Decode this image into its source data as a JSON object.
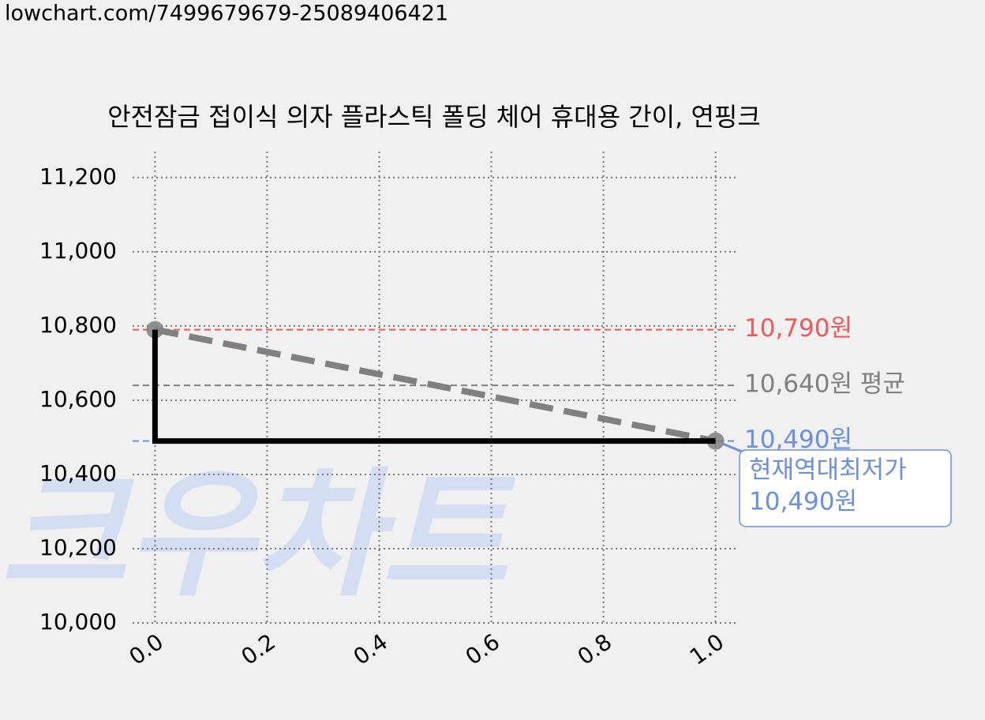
{
  "url": "lowchart.com/7499679679-25089406421",
  "watermark": "크우차트",
  "chart_data": {
    "type": "line",
    "title": "안전잠금 접이식 의자 플라스틱 폴딩 체어 휴대용 간이, 연핑크",
    "series": [
      {
        "x": [
          0,
          1
        ],
        "values": [
          10790,
          10490
        ],
        "color": "#808080",
        "style": "dashed",
        "markers": true
      },
      {
        "x": [
          0,
          0,
          1
        ],
        "values": [
          10790,
          10490,
          10490
        ],
        "color": "#000000",
        "style": "solid",
        "markers": false
      }
    ],
    "reference_lines": [
      {
        "value": 10790,
        "label": "10,790원",
        "color": "#f0585a"
      },
      {
        "value": 10640,
        "label": "10,640원 평균",
        "color": "#808080"
      },
      {
        "value": 10490,
        "label": "10,490원",
        "color": "#6a8fe6"
      }
    ],
    "annotation": {
      "lines": [
        "현재역대최저가",
        "10,490원"
      ],
      "x": 1,
      "y": 10490,
      "color": "#6a8fe6"
    },
    "xlim": [
      -0.04,
      1.04
    ],
    "ylim": [
      10000,
      11270
    ],
    "xticks": [
      {
        "value": 0,
        "label": "0.0"
      },
      0.2,
      0.4,
      0.6,
      0.8,
      {
        "value": 1,
        "label": "1.0"
      }
    ],
    "yticks": [
      {
        "value": 10000,
        "label": "10,000"
      },
      {
        "value": 10200,
        "label": "10,200"
      },
      {
        "value": 10400,
        "label": "10,400"
      },
      {
        "value": 10600,
        "label": "10,600"
      },
      {
        "value": 10800,
        "label": "10,800"
      },
      {
        "value": 11000,
        "label": "11,000"
      },
      {
        "value": 11200,
        "label": "11,200"
      }
    ],
    "grid": true
  }
}
